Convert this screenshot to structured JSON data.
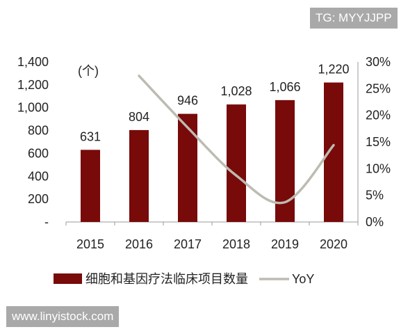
{
  "watermarks": {
    "top": "TG: MYYJJPP",
    "bottom": "www.linyistock.com"
  },
  "chart_data": {
    "type": "bar+line",
    "categories": [
      "2015",
      "2016",
      "2017",
      "2018",
      "2019",
      "2020"
    ],
    "series": [
      {
        "name": "细胞和基因疗法临床项目数量",
        "type": "bar",
        "axis": "left",
        "values": [
          631,
          804,
          946,
          1028,
          1066,
          1220
        ],
        "labels": [
          "631",
          "804",
          "946",
          "1,028",
          "1,066",
          "1,220"
        ],
        "color": "#780a0a"
      },
      {
        "name": "YoY",
        "type": "line",
        "axis": "right",
        "x": [
          "2016",
          "2017",
          "2018",
          "2019",
          "2020"
        ],
        "values": [
          27.4,
          17.7,
          8.7,
          3.7,
          14.4
        ],
        "color": "#bdbbb2",
        "smooth": true
      }
    ],
    "left_axis": {
      "unit_label": "(个)",
      "ylim": [
        0,
        1400
      ],
      "ticks": [
        "-",
        "200",
        "400",
        "600",
        "800",
        "1,000",
        "1,200",
        "1,400"
      ]
    },
    "right_axis": {
      "ylim": [
        0,
        30
      ],
      "ticks": [
        "0%",
        "5%",
        "10%",
        "15%",
        "20%",
        "25%",
        "30%"
      ]
    },
    "grid": false,
    "legend": "bottom"
  }
}
